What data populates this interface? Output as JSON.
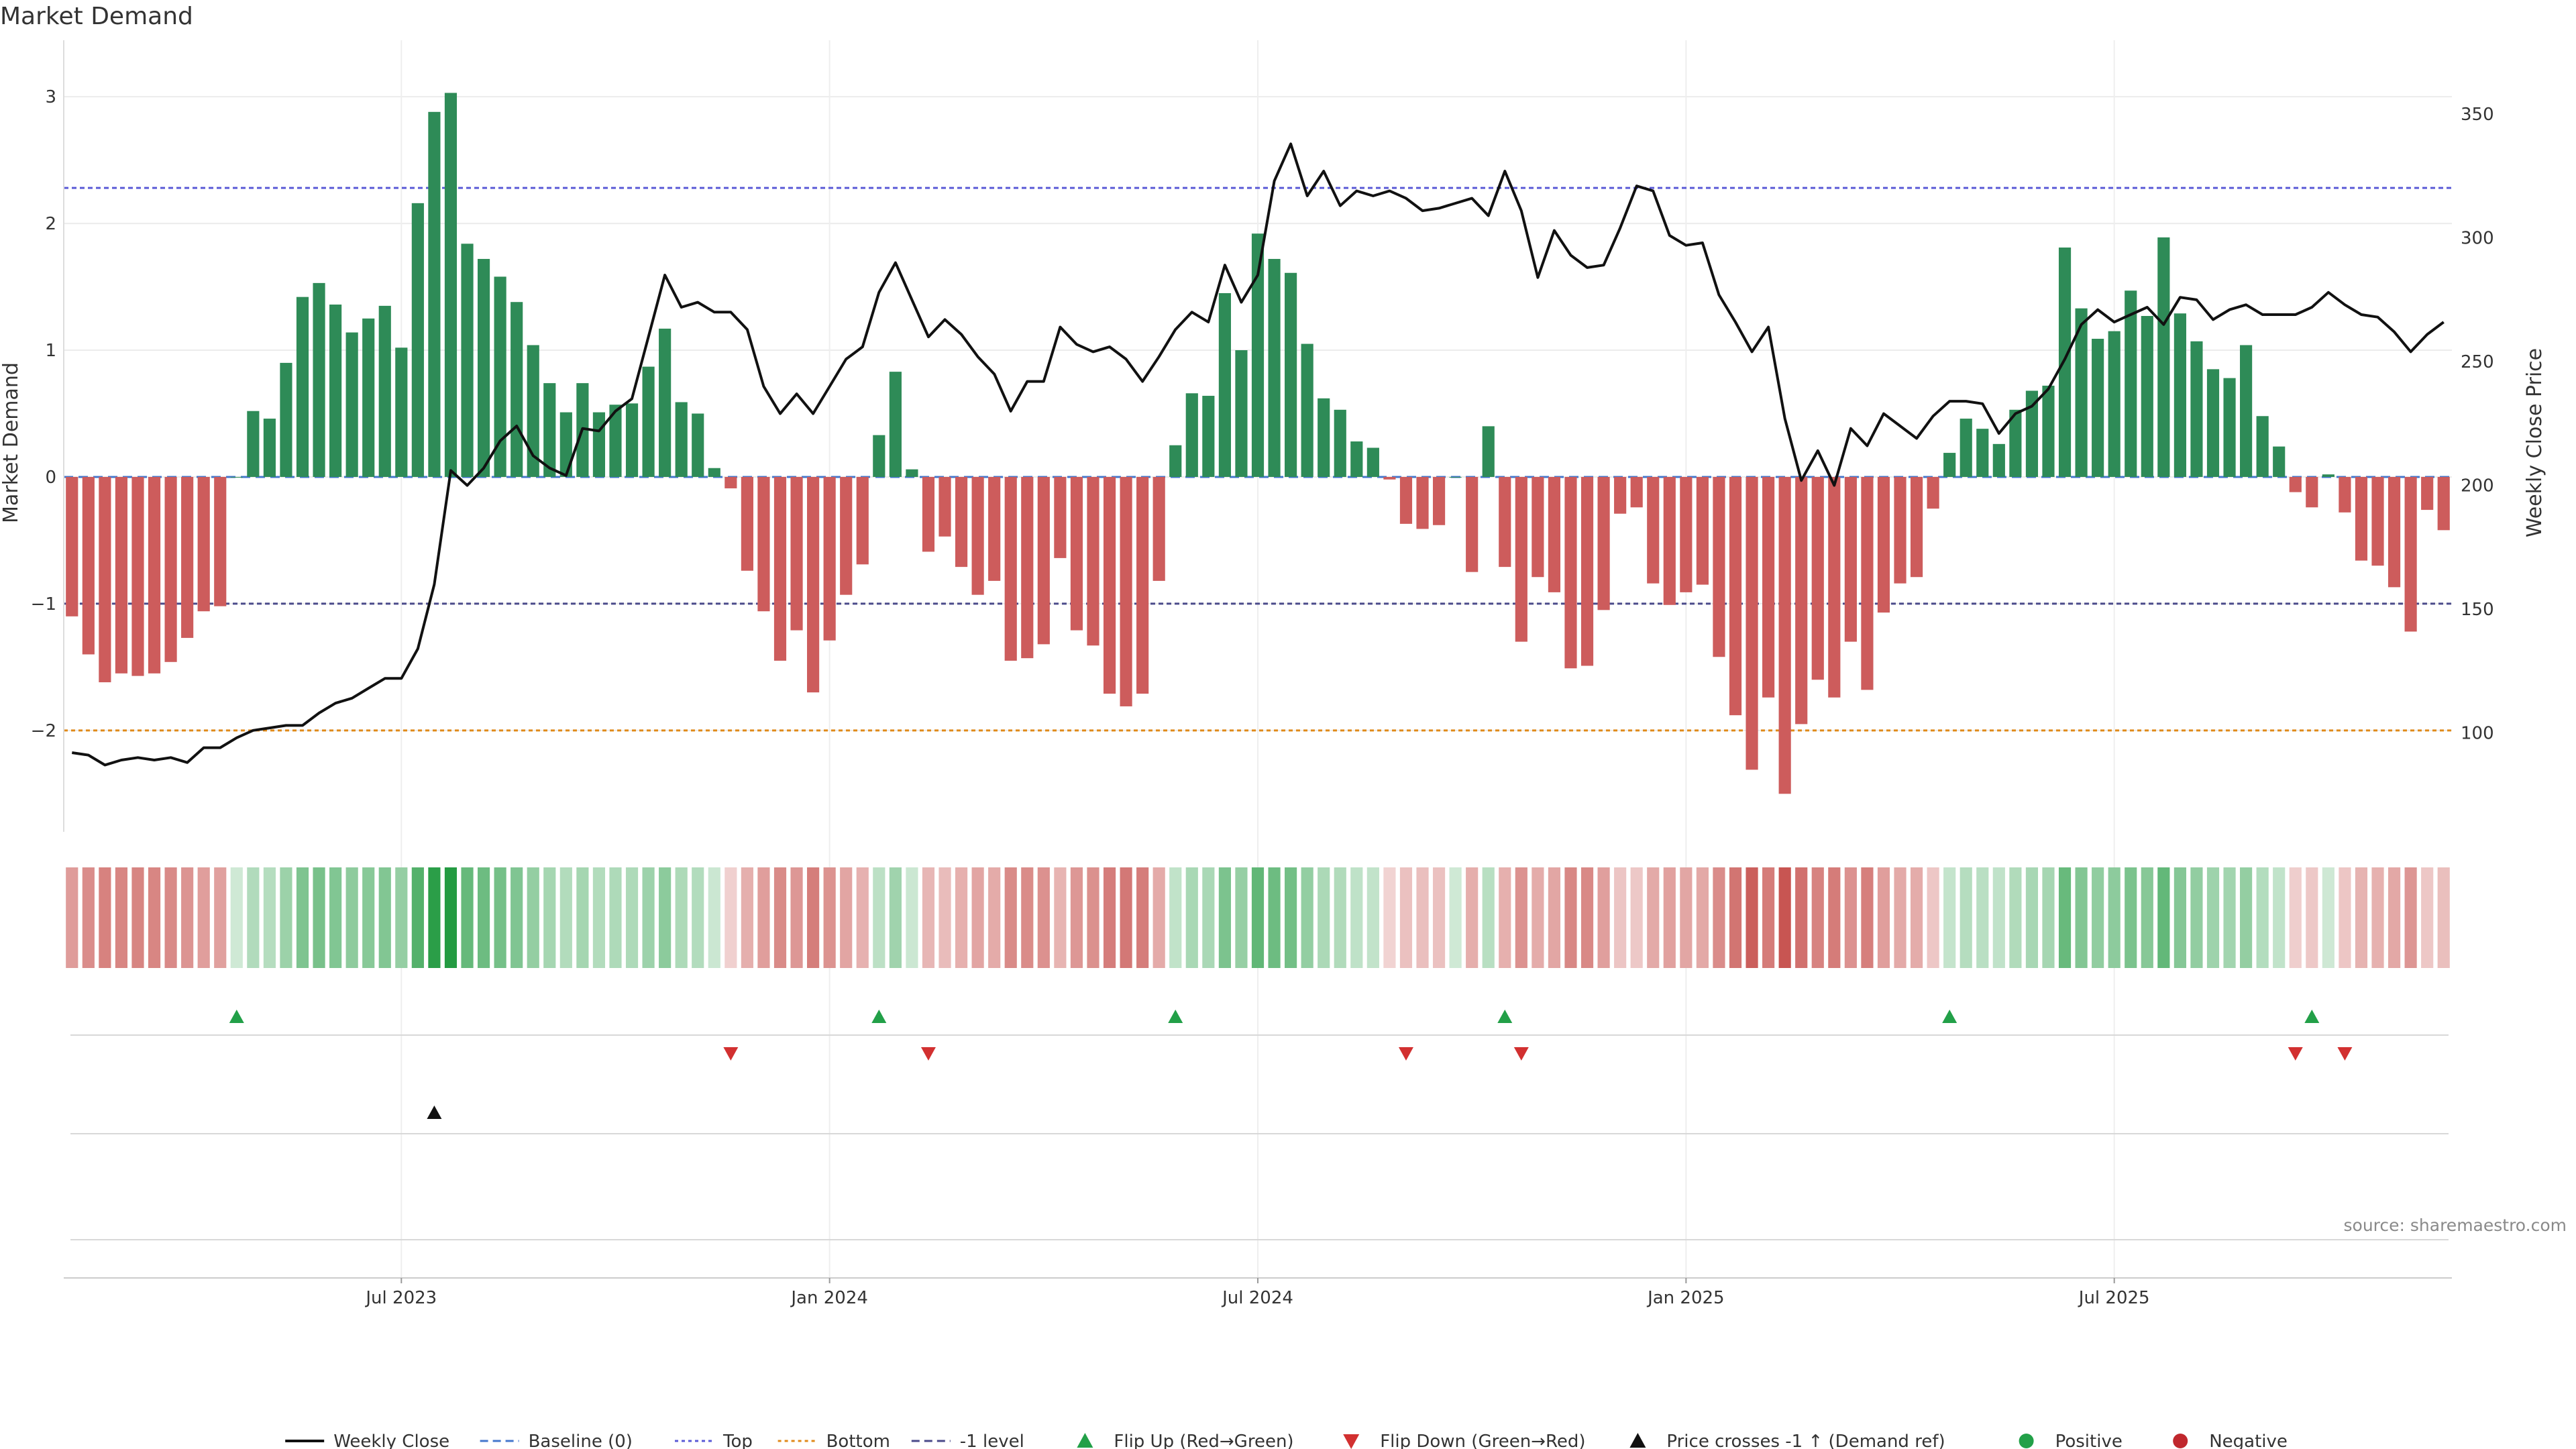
{
  "chart_data": {
    "type": "bar",
    "title": "Market Demand",
    "ylabel": "Market Demand",
    "y2label": "Weekly Close Price",
    "ylim": [
      -2.8,
      3.35
    ],
    "y2lim": [
      60,
      375
    ],
    "yticks": [
      3,
      2,
      1,
      0,
      -1,
      -2
    ],
    "ytick_labels": [
      "3",
      "2",
      "1",
      "0",
      "−1",
      "−2"
    ],
    "y2ticks": [
      350,
      300,
      250,
      200,
      150,
      100
    ],
    "y2tick_labels": [
      "350",
      "300",
      "250",
      "200",
      "150",
      "100"
    ],
    "xticks": [
      {
        "index": 20.5,
        "label": "Jul 2023"
      },
      {
        "index": 46.5,
        "label": "Jan 2024"
      },
      {
        "index": 72.5,
        "label": "Jul 2024"
      },
      {
        "index": 98.5,
        "label": "Jan 2025"
      },
      {
        "index": 124.5,
        "label": "Jul 2025"
      }
    ],
    "reference_lines": [
      {
        "name": "Top",
        "value": 2.28,
        "color": "#5b5bd6"
      },
      {
        "name": "Baseline (0)",
        "value": 0,
        "color": "#4477cc"
      },
      {
        "name": "-1 level",
        "value": -1,
        "color": "#4a4a8a"
      },
      {
        "name": "Bottom",
        "value": -2,
        "color": "#e08a1a"
      }
    ],
    "series": [
      {
        "name": "Market Demand",
        "kind": "bar",
        "values": [
          -1.1,
          -1.4,
          -1.62,
          -1.55,
          -1.57,
          -1.55,
          -1.46,
          -1.27,
          -1.06,
          -1.02,
          0,
          0.52,
          0.46,
          0.9,
          1.42,
          1.53,
          1.36,
          1.14,
          1.25,
          1.35,
          1.02,
          2.16,
          2.88,
          3.03,
          1.84,
          1.72,
          1.58,
          1.38,
          1.04,
          0.74,
          0.51,
          0.74,
          0.51,
          0.57,
          0.58,
          0.87,
          1.17,
          0.59,
          0.5,
          0.07,
          -0.09,
          -0.74,
          -1.06,
          -1.45,
          -1.21,
          -1.7,
          -1.29,
          -0.93,
          -0.69,
          0.33,
          0.83,
          0.06,
          -0.59,
          -0.47,
          -0.71,
          -0.93,
          -0.82,
          -1.45,
          -1.43,
          -1.32,
          -0.64,
          -1.21,
          -1.33,
          -1.71,
          -1.81,
          -1.71,
          -0.82,
          0.25,
          0.66,
          0.64,
          1.45,
          1,
          1.92,
          1.72,
          1.61,
          1.05,
          0.62,
          0.53,
          0.28,
          0.23,
          -0.02,
          -0.37,
          -0.41,
          -0.38,
          0,
          -0.75,
          0.4,
          -0.71,
          -1.3,
          -0.79,
          -0.91,
          -1.51,
          -1.49,
          -1.05,
          -0.29,
          -0.24,
          -0.84,
          -1.01,
          -0.91,
          -0.85,
          -1.42,
          -1.88,
          -2.31,
          -1.74,
          -2.5,
          -1.95,
          -1.6,
          -1.74,
          -1.3,
          -1.68,
          -1.07,
          -0.84,
          -0.79,
          -0.25,
          0.19,
          0.46,
          0.38,
          0.26,
          0.53,
          0.68,
          0.72,
          1.81,
          1.33,
          1.09,
          1.15,
          1.47,
          1.27,
          1.89,
          1.29,
          1.07,
          0.85,
          0.78,
          1.04,
          0.48,
          0.24,
          -0.12,
          -0.24,
          0.02,
          -0.28,
          -0.66,
          -0.7,
          -0.87,
          -1.22,
          -0.26,
          -0.42
        ]
      },
      {
        "name": "Weekly Close",
        "kind": "line",
        "values": [
          92,
          91,
          87,
          89,
          90,
          89,
          90,
          88,
          94,
          94,
          98,
          101,
          102,
          103,
          103,
          108,
          112,
          114,
          118,
          122,
          122,
          134,
          160,
          206,
          200,
          207,
          218,
          224,
          212,
          207,
          204,
          223,
          222,
          230,
          235,
          260,
          285,
          272,
          274,
          270,
          270,
          263,
          240,
          229,
          237,
          229,
          240,
          251,
          256,
          278,
          290,
          275,
          260,
          267,
          261,
          252,
          245,
          230,
          242,
          242,
          264,
          257,
          254,
          256,
          251,
          242,
          252,
          263,
          270,
          266,
          289,
          274,
          285,
          323,
          338,
          317,
          327,
          313,
          319,
          317,
          319,
          316,
          311,
          312,
          314,
          316,
          309,
          327,
          311,
          284,
          303,
          293,
          288,
          289,
          304,
          321,
          319,
          301,
          297,
          298,
          277,
          266,
          254,
          264,
          227,
          202,
          214,
          200,
          223,
          216,
          229,
          224,
          219,
          228,
          234,
          234,
          233,
          221,
          229,
          232,
          239,
          251,
          265,
          271,
          266,
          269,
          272,
          265,
          276,
          275,
          267,
          271,
          273,
          269,
          269,
          269,
          272,
          278,
          273,
          269,
          268,
          262,
          254,
          261,
          266
        ]
      }
    ],
    "flip_up_indices": [
      10,
      49,
      67,
      87,
      114,
      136
    ],
    "flip_down_indices": [
      40,
      52,
      81,
      88,
      135,
      138
    ],
    "price_cross_indices": [
      22
    ],
    "legend": [
      {
        "label": "Weekly Close",
        "marker": "line",
        "color": "#111111"
      },
      {
        "label": "Baseline (0)",
        "marker": "dash",
        "color": "#4477cc"
      },
      {
        "label": "Top",
        "marker": "dot",
        "color": "#5b5bd6"
      },
      {
        "label": "Bottom",
        "marker": "dot",
        "color": "#e08a1a"
      },
      {
        "label": "-1 level",
        "marker": "dash",
        "color": "#4a4a8a"
      },
      {
        "label": "Flip Up (Red→Green)",
        "marker": "tri-up",
        "color": "#22a048"
      },
      {
        "label": "Flip Down (Green→Red)",
        "marker": "tri-down",
        "color": "#d23030"
      },
      {
        "label": "Price crosses -1 ↑ (Demand ref)",
        "marker": "tri-up",
        "color": "#111111"
      },
      {
        "label": "Positive",
        "marker": "circle",
        "color": "#22a048"
      },
      {
        "label": "Negative",
        "marker": "circle",
        "color": "#c0272d"
      }
    ],
    "legend_position": "bottom-center",
    "colors": {
      "positive": "#2e8b57",
      "negative": "#cd5c5c",
      "price": "#111111",
      "flip_up": "#22a048",
      "flip_down": "#d23030",
      "cross": "#111111"
    }
  },
  "source": "source: sharemaestro.com"
}
